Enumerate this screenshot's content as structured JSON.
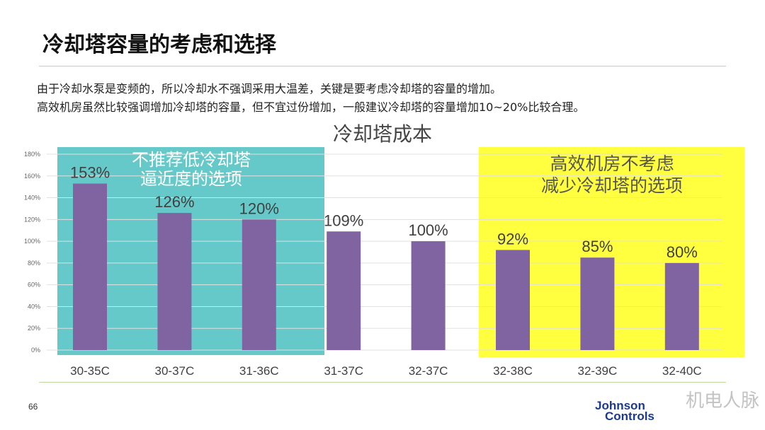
{
  "title": "冷却塔容量的考虑和选择",
  "paragraph": [
    "由于冷却水泵是变频的，所以冷却水不强调采用大温差，关键是要考虑冷却塔的容量的增加。",
    "高效机房虽然比较强调增加冷却塔的容量，但不宜过份增加，一般建议冷却塔的容量增加10~20%比较合理。"
  ],
  "page_number": "66",
  "logo": [
    "Johnson",
    "Controls"
  ],
  "watermark": "机电人脉",
  "chart_data": {
    "type": "bar",
    "title": "冷却塔成本",
    "categories": [
      "30-35C",
      "30-37C",
      "31-36C",
      "31-37C",
      "32-37C",
      "32-38C",
      "32-39C",
      "32-40C"
    ],
    "values": [
      153,
      126,
      120,
      109,
      100,
      92,
      85,
      80
    ],
    "data_labels": [
      "153%",
      "126%",
      "120%",
      "109%",
      "100%",
      "92%",
      "85%",
      "80%"
    ],
    "ylim": [
      0,
      180
    ],
    "yticks": [
      "0%",
      "20%",
      "40%",
      "60%",
      "80%",
      "100%",
      "120%",
      "140%",
      "160%",
      "180%"
    ],
    "grid": true,
    "bar_color": "#8064a2",
    "annotations": [
      {
        "lines": [
          "不推荐低冷却塔",
          "逼近度的选项"
        ],
        "color": "#66c9c9",
        "range": [
          "30-35C",
          "31-36C"
        ]
      },
      {
        "lines": [
          "高效机房不考虑",
          "减少冷却塔的选项"
        ],
        "color": "#ffff3f",
        "range": [
          "32-38C",
          "32-40C"
        ]
      }
    ]
  }
}
